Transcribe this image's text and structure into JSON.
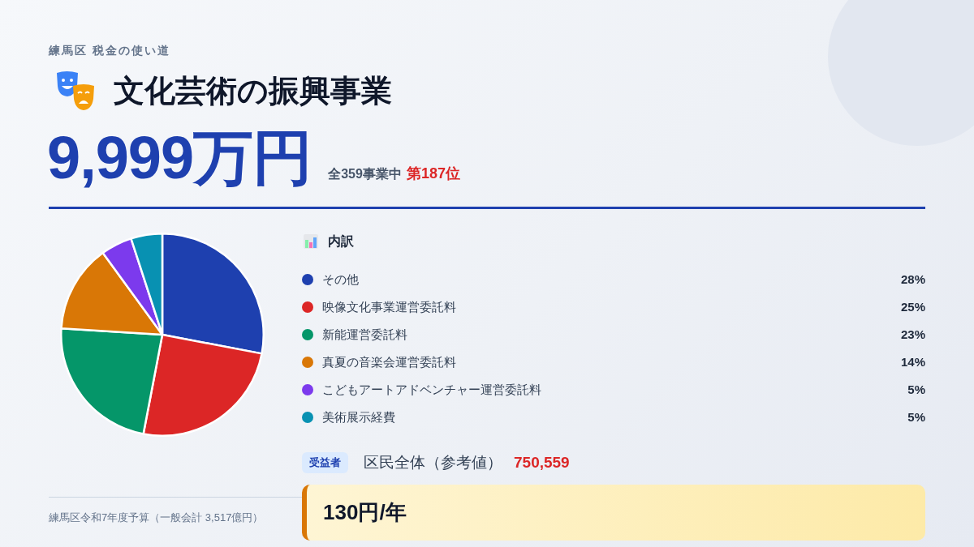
{
  "chart_data": {
    "type": "pie",
    "subtitle": "練馬区 税金の使い道",
    "title": "文化芸術の振興事業",
    "legend_title": "内訳",
    "categories": [
      "その他",
      "映像文化事業運営委託料",
      "新能運営委託料",
      "真夏の音楽会運営委託料",
      "こどもアートアドベンチャー運営委託料",
      "美術展示経費"
    ],
    "values": [
      28,
      25,
      23,
      14,
      5,
      5
    ],
    "colors": [
      "#1e40af",
      "#dc2626",
      "#059669",
      "#d97706",
      "#7c3aed",
      "#0891b2"
    ],
    "value_labels": [
      "28%",
      "25%",
      "23%",
      "14%",
      "5%",
      "5%"
    ],
    "legend": "right",
    "annotations": [
      "9,999万円",
      "全359事業中",
      "第187位",
      "受益者",
      "区民全体（参考値）",
      "750,559",
      "130円/年",
      "練馬区令和7年度予算（一般会計 3,517億円）"
    ]
  }
}
